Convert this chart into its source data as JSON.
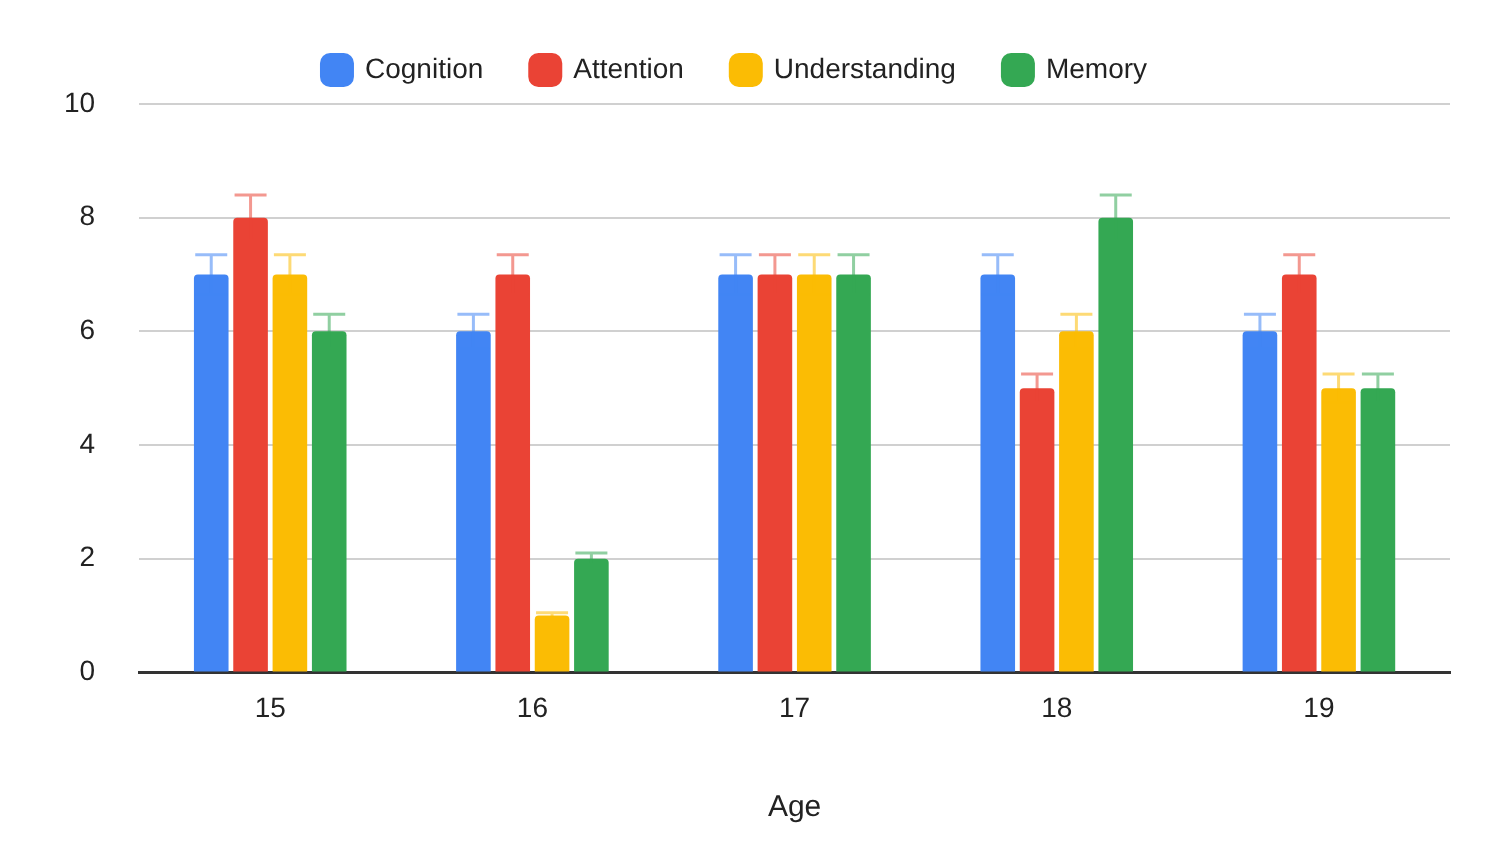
{
  "chart_data": {
    "type": "bar",
    "xlabel": "Age",
    "categories": [
      "15",
      "16",
      "17",
      "18",
      "19"
    ],
    "series": [
      {
        "name": "Cognition",
        "color": "#4285f4",
        "values": [
          7,
          6,
          7,
          7,
          6
        ],
        "errors": [
          0.35,
          0.3,
          0.35,
          0.35,
          0.3
        ]
      },
      {
        "name": "Attention",
        "color": "#ea4335",
        "values": [
          8,
          7,
          7,
          5,
          7
        ],
        "errors": [
          0.4,
          0.35,
          0.35,
          0.25,
          0.35
        ]
      },
      {
        "name": "Understanding",
        "color": "#fbbc04",
        "values": [
          7,
          1,
          7,
          6,
          5
        ],
        "errors": [
          0.35,
          0.05,
          0.35,
          0.3,
          0.25
        ]
      },
      {
        "name": "Memory",
        "color": "#34a853",
        "values": [
          6,
          2,
          7,
          8,
          5
        ],
        "errors": [
          0.3,
          0.1,
          0.35,
          0.4,
          0.25
        ]
      }
    ],
    "ylim": [
      0,
      10
    ],
    "yticks": [
      0,
      2,
      4,
      6,
      8,
      10
    ],
    "grid": "y",
    "legend": "top"
  }
}
